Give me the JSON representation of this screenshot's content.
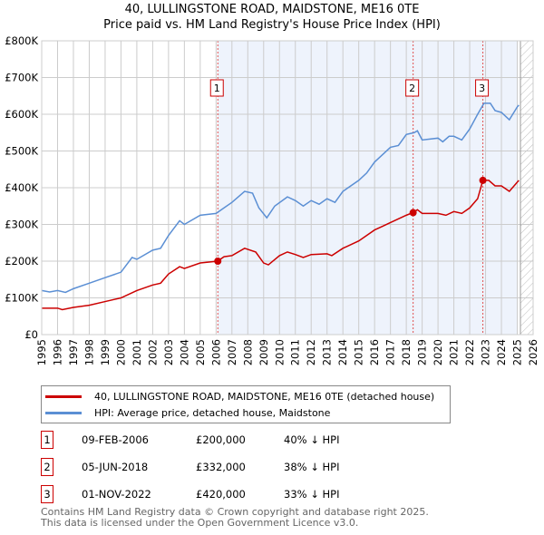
{
  "chart_data": {
    "type": "line",
    "title": "40, LULLINGSTONE ROAD, MAIDSTONE, ME16 0TE",
    "subtitle": "Price paid vs. HM Land Registry's House Price Index (HPI)",
    "xlim": [
      1995,
      2026
    ],
    "ylim": [
      0,
      800000
    ],
    "x_ticks": [
      "1995",
      "1996",
      "1997",
      "1998",
      "1999",
      "2000",
      "2001",
      "2002",
      "2003",
      "2004",
      "2005",
      "2006",
      "2007",
      "2008",
      "2009",
      "2010",
      "2011",
      "2012",
      "2013",
      "2014",
      "2015",
      "2016",
      "2017",
      "2018",
      "2019",
      "2020",
      "2021",
      "2022",
      "2023",
      "2024",
      "2025",
      "2026"
    ],
    "y_ticks": [
      {
        "v": 0,
        "l": "£0"
      },
      {
        "v": 100000,
        "l": "£100K"
      },
      {
        "v": 200000,
        "l": "£200K"
      },
      {
        "v": 300000,
        "l": "£300K"
      },
      {
        "v": 400000,
        "l": "£400K"
      },
      {
        "v": 500000,
        "l": "£500K"
      },
      {
        "v": 600000,
        "l": "£600K"
      },
      {
        "v": 700000,
        "l": "£700K"
      },
      {
        "v": 800000,
        "l": "£800K"
      }
    ],
    "grid": true,
    "shaded_range": [
      2006.1,
      2025.0
    ],
    "hatched_from": 2025.2,
    "series": [
      {
        "name": "40, LULLINGSTONE ROAD, MAIDSTONE, ME16 0TE (detached house)",
        "color": "#cc0000",
        "x": [
          1995,
          1996,
          1996.3,
          1997,
          1998,
          1999,
          2000,
          2001,
          2002,
          2002.5,
          2003,
          2003.7,
          2004,
          2005,
          2006.1,
          2006.5,
          2007,
          2007.8,
          2008.5,
          2009,
          2009.3,
          2010,
          2010.5,
          2011,
          2011.5,
          2012,
          2013,
          2013.3,
          2014,
          2015,
          2016,
          2016.5,
          2017,
          2018,
          2018.4,
          2018.7,
          2019,
          2020,
          2020.5,
          2021,
          2021.5,
          2022,
          2022.5,
          2022.83,
          2023.2,
          2023.6,
          2024,
          2024.5,
          2025.1
        ],
        "y": [
          72000,
          72000,
          68000,
          74000,
          80000,
          90000,
          100000,
          120000,
          135000,
          140000,
          165000,
          185000,
          180000,
          195000,
          200000,
          212000,
          215000,
          235000,
          225000,
          195000,
          190000,
          215000,
          225000,
          218000,
          210000,
          218000,
          220000,
          215000,
          235000,
          255000,
          285000,
          295000,
          305000,
          325000,
          332000,
          340000,
          330000,
          330000,
          325000,
          335000,
          330000,
          345000,
          370000,
          420000,
          420000,
          405000,
          405000,
          390000,
          420000
        ]
      },
      {
        "name": "HPI: Average price, detached house, Maidstone",
        "color": "#5b8fd4",
        "x": [
          1995,
          1995.5,
          1996,
          1996.5,
          1997,
          1998,
          1999,
          2000,
          2000.7,
          2001,
          2002,
          2002.5,
          2003,
          2003.7,
          2004,
          2005,
          2006,
          2006.5,
          2007,
          2007.8,
          2008.3,
          2008.7,
          2009.2,
          2009.7,
          2010.5,
          2011,
          2011.5,
          2012,
          2012.5,
          2013,
          2013.5,
          2014,
          2015,
          2015.5,
          2016,
          2016.5,
          2017,
          2017.5,
          2018,
          2018.5,
          2018.7,
          2019,
          2020,
          2020.3,
          2020.7,
          2021,
          2021.5,
          2022,
          2022.5,
          2022.9,
          2023.3,
          2023.6,
          2024,
          2024.5,
          2025,
          2025.1
        ],
        "y": [
          120000,
          116000,
          120000,
          115000,
          125000,
          140000,
          155000,
          170000,
          210000,
          205000,
          230000,
          235000,
          270000,
          310000,
          300000,
          325000,
          330000,
          345000,
          360000,
          390000,
          385000,
          345000,
          318000,
          350000,
          375000,
          365000,
          350000,
          365000,
          355000,
          370000,
          360000,
          390000,
          420000,
          440000,
          470000,
          490000,
          510000,
          515000,
          545000,
          550000,
          555000,
          530000,
          535000,
          525000,
          540000,
          540000,
          530000,
          560000,
          600000,
          630000,
          630000,
          610000,
          605000,
          585000,
          620000,
          625000
        ]
      }
    ],
    "sales": [
      {
        "label": "1",
        "x": 2006.11,
        "y": 200000,
        "date": "09-FEB-2006",
        "price": "£200,000",
        "hpi": "40% ↓ HPI"
      },
      {
        "label": "2",
        "x": 2018.43,
        "y": 332000,
        "date": "05-JUN-2018",
        "price": "£332,000",
        "hpi": "38% ↓ HPI"
      },
      {
        "label": "3",
        "x": 2022.83,
        "y": 420000,
        "date": "01-NOV-2022",
        "price": "£420,000",
        "hpi": "33% ↓ HPI"
      }
    ]
  },
  "footer": {
    "line1": "Contains HM Land Registry data © Crown copyright and database right 2025.",
    "line2": "This data is licensed under the Open Government Licence v3.0."
  }
}
